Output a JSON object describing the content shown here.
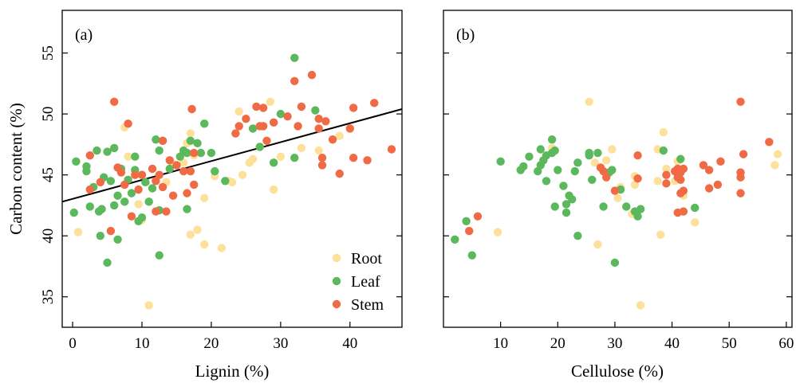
{
  "colors": {
    "Root": "#fde19b",
    "Leaf": "#5bb85c",
    "Stem": "#ef6a45"
  },
  "chart_data": [
    {
      "panel_label": "(a)",
      "type": "scatter",
      "xlabel": "Lignin (%)",
      "ylabel": "Carbon content (%)",
      "xlim": [
        -1.5,
        47.5
      ],
      "ylim": [
        32.5,
        58.5
      ],
      "xticks": [
        0,
        10,
        20,
        30,
        40
      ],
      "yticks": [
        35,
        40,
        45,
        50,
        55
      ],
      "grid": false,
      "legend": {
        "placement": "bottom-right",
        "entries": [
          "Root",
          "Leaf",
          "Stem"
        ]
      },
      "fit_line": {
        "x": [
          -1.5,
          47.5
        ],
        "y": [
          42.8,
          50.4
        ]
      },
      "series": [
        {
          "name": "Root",
          "points": [
            [
              0.8,
              40.3
            ],
            [
              7.5,
              48.9
            ],
            [
              9.5,
              42.6
            ],
            [
              10.0,
              41.3
            ],
            [
              11.0,
              34.3
            ],
            [
              12.0,
              44.5
            ],
            [
              14.5,
              45.9
            ],
            [
              16.0,
              46.0
            ],
            [
              16.5,
              47.6
            ],
            [
              17.0,
              48.4
            ],
            [
              17.0,
              40.1
            ],
            [
              17.5,
              46.6
            ],
            [
              18.0,
              40.5
            ],
            [
              19.0,
              43.1
            ],
            [
              19.0,
              39.3
            ],
            [
              20.5,
              44.9
            ],
            [
              21.5,
              39.0
            ],
            [
              22.5,
              44.5
            ],
            [
              23.0,
              44.4
            ],
            [
              24.0,
              50.2
            ],
            [
              25.5,
              46.0
            ],
            [
              26.0,
              46.3
            ],
            [
              27.0,
              47.3
            ],
            [
              28.5,
              51.0
            ],
            [
              29.0,
              43.8
            ],
            [
              30.0,
              46.5
            ],
            [
              33.0,
              47.2
            ],
            [
              38.5,
              48.2
            ],
            [
              35.5,
              47.0
            ],
            [
              8.0,
              46.5
            ],
            [
              13.5,
              44.4
            ],
            [
              24.5,
              45.0
            ]
          ]
        },
        {
          "name": "Leaf",
          "points": [
            [
              0.5,
              46.1
            ],
            [
              0.2,
              41.9
            ],
            [
              2.0,
              45.3
            ],
            [
              2.0,
              45.7
            ],
            [
              2.5,
              42.4
            ],
            [
              3.0,
              44.0
            ],
            [
              3.5,
              47.0
            ],
            [
              3.8,
              42.0
            ],
            [
              4.0,
              40.0
            ],
            [
              4.2,
              42.2
            ],
            [
              4.5,
              44.8
            ],
            [
              5.0,
              46.9
            ],
            [
              5.0,
              37.8
            ],
            [
              5.5,
              44.5
            ],
            [
              6.0,
              47.2
            ],
            [
              6.0,
              42.5
            ],
            [
              6.5,
              39.7
            ],
            [
              6.5,
              43.3
            ],
            [
              7.0,
              45.5
            ],
            [
              7.5,
              42.8
            ],
            [
              8.0,
              44.6
            ],
            [
              8.5,
              43.5
            ],
            [
              9.0,
              46.5
            ],
            [
              9.0,
              45.4
            ],
            [
              9.5,
              41.2
            ],
            [
              10.0,
              45.0
            ],
            [
              10.5,
              44.4
            ],
            [
              10.0,
              41.5
            ],
            [
              11.0,
              42.8
            ],
            [
              11.5,
              43.9
            ],
            [
              12.0,
              47.9
            ],
            [
              12.5,
              47.0
            ],
            [
              12.5,
              38.4
            ],
            [
              13.0,
              47.8
            ],
            [
              14.0,
              45.5
            ],
            [
              15.5,
              46.5
            ],
            [
              16.0,
              47.0
            ],
            [
              16.5,
              46.8
            ],
            [
              17.0,
              47.8
            ],
            [
              18.0,
              47.6
            ],
            [
              18.5,
              46.8
            ],
            [
              19.0,
              49.2
            ],
            [
              20.0,
              46.8
            ],
            [
              20.5,
              45.3
            ],
            [
              22.0,
              44.5
            ],
            [
              26.0,
              48.8
            ],
            [
              29.0,
              46.0
            ],
            [
              30.0,
              50.0
            ],
            [
              32.0,
              54.6
            ],
            [
              32.0,
              46.4
            ],
            [
              35.0,
              50.3
            ],
            [
              27.0,
              47.3
            ],
            [
              16.5,
              42.2
            ],
            [
              12.5,
              42.1
            ]
          ]
        },
        {
          "name": "Stem",
          "points": [
            [
              2.5,
              46.6
            ],
            [
              2.5,
              43.8
            ],
            [
              4.0,
              44.4
            ],
            [
              5.5,
              40.4
            ],
            [
              6.0,
              51.0
            ],
            [
              6.5,
              45.6
            ],
            [
              7.0,
              45.2
            ],
            [
              7.5,
              44.2
            ],
            [
              8.0,
              49.2
            ],
            [
              8.5,
              41.6
            ],
            [
              9.0,
              45.0
            ],
            [
              9.5,
              43.8
            ],
            [
              10.0,
              45.0
            ],
            [
              11.5,
              45.5
            ],
            [
              12.0,
              44.5
            ],
            [
              12.0,
              42.0
            ],
            [
              12.5,
              45.0
            ],
            [
              13.0,
              47.8
            ],
            [
              13.0,
              44.0
            ],
            [
              13.5,
              42.0
            ],
            [
              14.0,
              46.2
            ],
            [
              14.5,
              43.3
            ],
            [
              15.0,
              45.8
            ],
            [
              16.0,
              45.3
            ],
            [
              16.5,
              43.5
            ],
            [
              17.0,
              45.3
            ],
            [
              17.2,
              50.4
            ],
            [
              17.5,
              44.2
            ],
            [
              17.5,
              46.8
            ],
            [
              23.5,
              48.4
            ],
            [
              24.0,
              49.0
            ],
            [
              25.0,
              49.6
            ],
            [
              26.5,
              50.6
            ],
            [
              27.0,
              49.0
            ],
            [
              27.5,
              50.5
            ],
            [
              27.5,
              49.0
            ],
            [
              28.0,
              47.8
            ],
            [
              29.0,
              49.3
            ],
            [
              31.0,
              49.8
            ],
            [
              32.0,
              52.7
            ],
            [
              32.5,
              49.0
            ],
            [
              33.0,
              50.6
            ],
            [
              34.5,
              53.2
            ],
            [
              35.5,
              49.6
            ],
            [
              35.5,
              48.8
            ],
            [
              36.0,
              46.4
            ],
            [
              36.0,
              45.8
            ],
            [
              36.5,
              49.4
            ],
            [
              37.5,
              47.9
            ],
            [
              38.5,
              45.1
            ],
            [
              40.0,
              48.8
            ],
            [
              40.5,
              46.4
            ],
            [
              40.5,
              50.5
            ],
            [
              42.5,
              46.2
            ],
            [
              43.5,
              50.9
            ],
            [
              46.0,
              47.1
            ]
          ]
        }
      ]
    },
    {
      "panel_label": "(b)",
      "type": "scatter",
      "xlabel": "Cellulose (%)",
      "ylabel": "",
      "xlim": [
        0,
        61
      ],
      "ylim": [
        32.5,
        58.5
      ],
      "xticks": [
        10,
        20,
        30,
        40,
        50,
        60
      ],
      "yticks": [
        35,
        40,
        45,
        50,
        55
      ],
      "grid": false,
      "series": [
        {
          "name": "Root",
          "points": [
            [
              9.5,
              40.3
            ],
            [
              19.0,
              47.2
            ],
            [
              25.5,
              51.0
            ],
            [
              26.5,
              46.0
            ],
            [
              27.0,
              39.3
            ],
            [
              28.5,
              46.2
            ],
            [
              29.5,
              47.1
            ],
            [
              30.5,
              43.1
            ],
            [
              33.0,
              41.8
            ],
            [
              33.5,
              44.2
            ],
            [
              34.5,
              34.3
            ],
            [
              37.5,
              47.1
            ],
            [
              37.5,
              44.5
            ],
            [
              38.0,
              40.1
            ],
            [
              38.5,
              48.5
            ],
            [
              39.0,
              45.5
            ],
            [
              40.5,
              44.5
            ],
            [
              41.0,
              46.1
            ],
            [
              42.0,
              43.3
            ],
            [
              44.0,
              41.1
            ],
            [
              58.0,
              45.8
            ],
            [
              58.5,
              46.7
            ],
            [
              31.0,
              44.0
            ],
            [
              33.5,
              44.9
            ]
          ]
        },
        {
          "name": "Leaf",
          "points": [
            [
              2.0,
              39.7
            ],
            [
              4.0,
              41.2
            ],
            [
              5.0,
              38.4
            ],
            [
              10.0,
              46.1
            ],
            [
              13.5,
              45.4
            ],
            [
              14.0,
              45.7
            ],
            [
              15.0,
              46.5
            ],
            [
              16.5,
              45.3
            ],
            [
              17.0,
              47.1
            ],
            [
              17.0,
              45.8
            ],
            [
              17.5,
              46.2
            ],
            [
              18.0,
              44.5
            ],
            [
              18.0,
              46.6
            ],
            [
              19.0,
              47.9
            ],
            [
              19.0,
              46.8
            ],
            [
              19.5,
              47.0
            ],
            [
              19.5,
              42.4
            ],
            [
              20.0,
              45.4
            ],
            [
              21.0,
              44.1
            ],
            [
              21.5,
              42.6
            ],
            [
              21.5,
              41.9
            ],
            [
              22.0,
              43.3
            ],
            [
              22.5,
              43.0
            ],
            [
              23.0,
              45.3
            ],
            [
              23.5,
              46.0
            ],
            [
              23.5,
              40.0
            ],
            [
              25.5,
              46.8
            ],
            [
              25.5,
              46.6
            ],
            [
              26.0,
              44.6
            ],
            [
              27.0,
              46.8
            ],
            [
              28.0,
              42.4
            ],
            [
              29.0,
              45.2
            ],
            [
              29.5,
              45.4
            ],
            [
              30.0,
              37.8
            ],
            [
              31.0,
              43.8
            ],
            [
              32.0,
              42.4
            ],
            [
              33.5,
              42.0
            ],
            [
              34.0,
              41.6
            ],
            [
              34.5,
              42.2
            ],
            [
              38.5,
              47.0
            ],
            [
              41.5,
              46.3
            ],
            [
              44.0,
              42.3
            ]
          ]
        },
        {
          "name": "Stem",
          "points": [
            [
              4.5,
              40.4
            ],
            [
              6.0,
              41.6
            ],
            [
              27.5,
              45.6
            ],
            [
              28.0,
              45.3
            ],
            [
              28.5,
              44.8
            ],
            [
              30.0,
              43.7
            ],
            [
              34.0,
              44.7
            ],
            [
              34.0,
              46.6
            ],
            [
              39.0,
              45.0
            ],
            [
              39.0,
              44.3
            ],
            [
              40.5,
              45.3
            ],
            [
              41.0,
              45.5
            ],
            [
              41.0,
              44.8
            ],
            [
              41.0,
              41.9
            ],
            [
              41.5,
              43.5
            ],
            [
              41.5,
              44.6
            ],
            [
              41.5,
              45.2
            ],
            [
              42.0,
              45.5
            ],
            [
              42.0,
              43.7
            ],
            [
              42.0,
              42.0
            ],
            [
              45.5,
              45.8
            ],
            [
              46.5,
              45.4
            ],
            [
              46.5,
              43.9
            ],
            [
              48.0,
              44.2
            ],
            [
              48.5,
              46.1
            ],
            [
              52.0,
              51.0
            ],
            [
              52.0,
              45.2
            ],
            [
              52.0,
              44.8
            ],
            [
              52.0,
              43.5
            ],
            [
              52.5,
              46.7
            ],
            [
              57.0,
              47.7
            ]
          ]
        }
      ]
    }
  ]
}
